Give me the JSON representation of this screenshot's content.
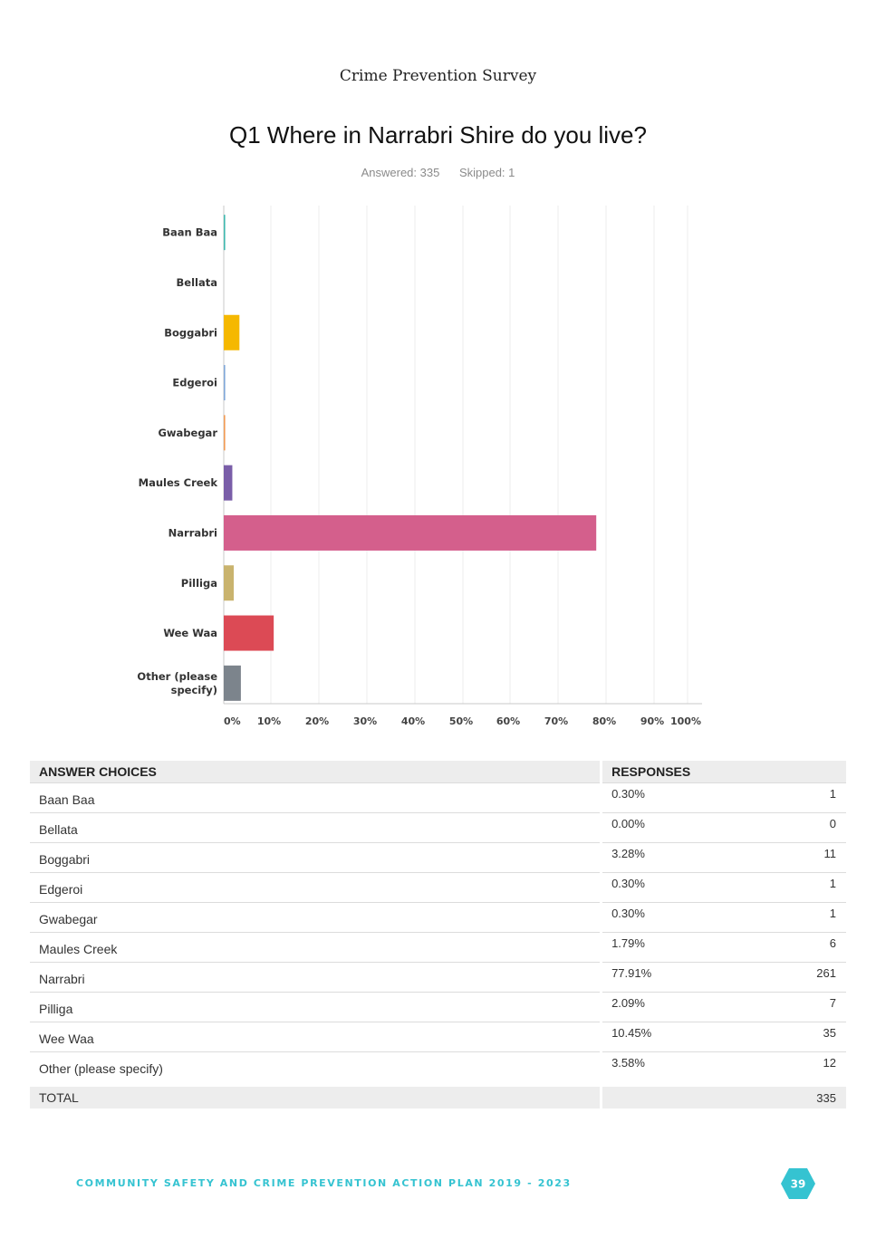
{
  "header": {
    "document_title": "Crime Prevention Survey"
  },
  "question": {
    "title": "Q1 Where in Narrabri Shire do you live?",
    "answered": "Answered: 335",
    "skipped": "Skipped: 1"
  },
  "chart_data": {
    "type": "bar",
    "orientation": "horizontal",
    "title": "Q1 Where in Narrabri Shire do you live?",
    "categories": [
      "Baan Baa",
      "Bellata",
      "Boggabri",
      "Edgeroi",
      "Gwabegar",
      "Maules Creek",
      "Narrabri",
      "Pilliga",
      "Wee Waa",
      "Other (please specify)"
    ],
    "category_lines": [
      [
        "Baan Baa"
      ],
      [
        "Bellata"
      ],
      [
        "Boggabri"
      ],
      [
        "Edgeroi"
      ],
      [
        "Gwabegar"
      ],
      [
        "Maules Creek"
      ],
      [
        "Narrabri"
      ],
      [
        "Pilliga"
      ],
      [
        "Wee Waa"
      ],
      [
        "Other (please",
        "specify)"
      ]
    ],
    "values": [
      0.3,
      0.0,
      3.28,
      0.3,
      0.3,
      1.79,
      77.91,
      2.09,
      10.45,
      3.58
    ],
    "colors": [
      "#3fb8af",
      "#5b8def",
      "#f5b800",
      "#7fa7d9",
      "#f29b52",
      "#7a5ea8",
      "#d45f8c",
      "#c9b36e",
      "#dc4a55",
      "#7c848c"
    ],
    "xticks": [
      "0%",
      "10%",
      "20%",
      "30%",
      "40%",
      "50%",
      "60%",
      "70%",
      "80%",
      "90%",
      "100%"
    ],
    "xlim": [
      0,
      100
    ],
    "xlabel": "",
    "ylabel": "",
    "grid": true
  },
  "table": {
    "headers": {
      "choices": "ANSWER CHOICES",
      "responses": "RESPONSES"
    },
    "rows": [
      {
        "choice": "Baan Baa",
        "percent": "0.30%",
        "count": "1"
      },
      {
        "choice": "Bellata",
        "percent": "0.00%",
        "count": "0"
      },
      {
        "choice": "Boggabri",
        "percent": "3.28%",
        "count": "11"
      },
      {
        "choice": "Edgeroi",
        "percent": "0.30%",
        "count": "1"
      },
      {
        "choice": "Gwabegar",
        "percent": "0.30%",
        "count": "1"
      },
      {
        "choice": "Maules Creek",
        "percent": "1.79%",
        "count": "6"
      },
      {
        "choice": "Narrabri",
        "percent": "77.91%",
        "count": "261"
      },
      {
        "choice": "Pilliga",
        "percent": "2.09%",
        "count": "7"
      },
      {
        "choice": "Wee Waa",
        "percent": "10.45%",
        "count": "35"
      },
      {
        "choice": "Other (please specify)",
        "percent": "3.58%",
        "count": "12"
      }
    ],
    "total_label": "TOTAL",
    "total_count": "335"
  },
  "footer": {
    "text": "COMMUNITY SAFETY AND CRIME PREVENTION ACTION PLAN 2019 - 2023",
    "page_number": "39",
    "accent_color": "#35c3d1"
  }
}
